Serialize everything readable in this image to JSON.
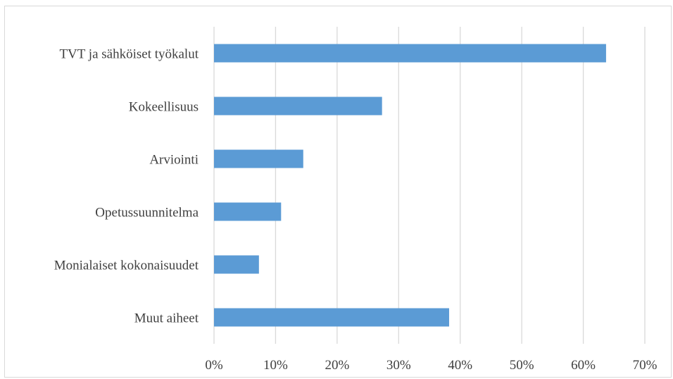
{
  "chart_data": {
    "type": "bar",
    "orientation": "horizontal",
    "categories": [
      "TVT ja sähköiset työkalut",
      "Kokeellisuus",
      "Arviointi",
      "Opetussuunnitelma",
      "Monialaiset kokonaisuudet",
      "Muut aiheet"
    ],
    "values": [
      63.7,
      27.3,
      14.5,
      10.9,
      7.3,
      38.2
    ],
    "xlim": [
      0,
      70
    ],
    "xticks": [
      "0%",
      "10%",
      "20%",
      "30%",
      "40%",
      "50%",
      "60%",
      "70%"
    ],
    "grid": "vertical",
    "bar_color": "#5b9bd5",
    "grid_color": "#d9d9d9",
    "title": "",
    "xlabel": "",
    "ylabel": ""
  }
}
